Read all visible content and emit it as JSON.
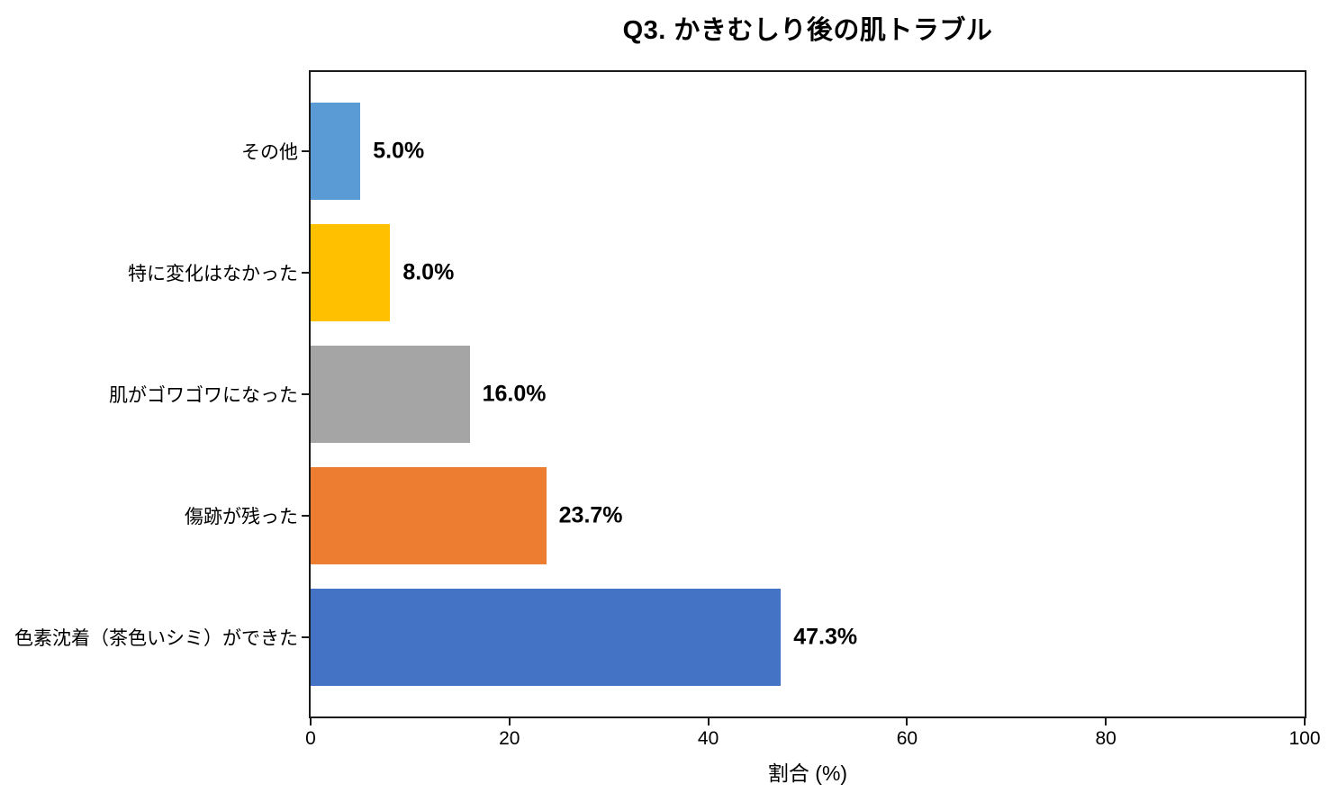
{
  "chart": {
    "title": "Q3. かきむしり後の肌トラブル",
    "xlabel": "割合 (%)"
  },
  "chart_data": {
    "type": "bar",
    "orientation": "horizontal",
    "title": "Q3. かきむしり後の肌トラブル",
    "xlabel": "割合 (%)",
    "ylabel": "",
    "xlim": [
      0,
      100
    ],
    "x_ticks": [
      0,
      20,
      40,
      60,
      80,
      100
    ],
    "grid": false,
    "legend": null,
    "frame": true,
    "categories": [
      "その他",
      "特に変化はなかった",
      "肌がゴワゴワになった",
      "傷跡が残った",
      "色素沈着（茶色いシミ）ができた"
    ],
    "values": [
      5.0,
      8.0,
      16.0,
      23.7,
      47.3
    ],
    "value_labels": [
      "5.0%",
      "8.0%",
      "16.0%",
      "23.7%",
      "47.3%"
    ],
    "bar_colors": [
      "#5B9BD5",
      "#FFC000",
      "#A5A5A5",
      "#ED7D31",
      "#4472C4"
    ],
    "axis_color": "#1a1a1a",
    "text_color": "#000000",
    "background_color": "#ffffff"
  }
}
